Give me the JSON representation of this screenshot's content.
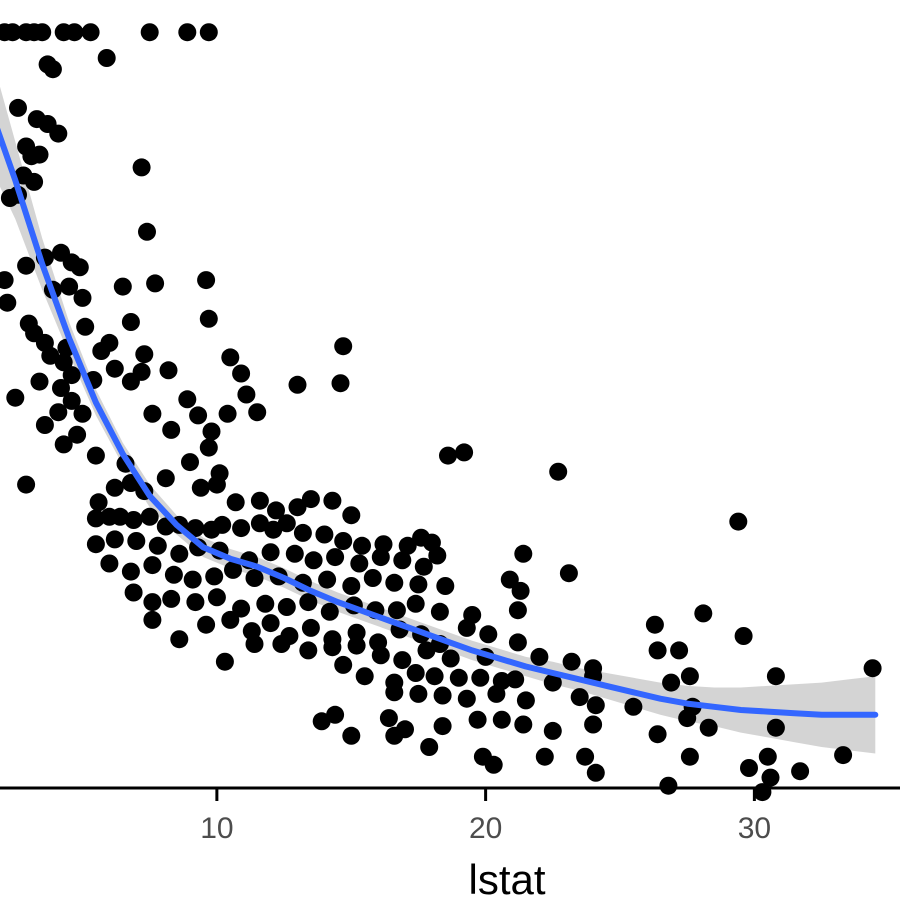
{
  "chart_data": {
    "type": "scatter",
    "title": "",
    "xlabel": "lstat",
    "ylabel": "",
    "xlim": [
      1.0,
      34.5
    ],
    "ylim": [
      3.0,
      52.0
    ],
    "x_ticks": [
      10,
      20,
      30
    ],
    "grid": false,
    "legend": "none",
    "colors": {
      "points": "#000000",
      "smooth_line": "#3366ff",
      "ribbon": "#cccccc",
      "axis": "#000000",
      "tick_label": "#4d4d4d"
    },
    "points": [
      [
        1.7,
        50
      ],
      [
        2.1,
        50
      ],
      [
        2.4,
        50
      ],
      [
        2.9,
        50
      ],
      [
        3.2,
        50
      ],
      [
        3.5,
        50
      ],
      [
        4.3,
        50
      ],
      [
        4.7,
        50
      ],
      [
        5.3,
        50
      ],
      [
        7.5,
        50
      ],
      [
        8.9,
        50
      ],
      [
        9.7,
        50
      ],
      [
        3.7,
        48
      ],
      [
        3.9,
        47.7
      ],
      [
        5.9,
        48.4
      ],
      [
        2.6,
        45.3
      ],
      [
        3.3,
        44.6
      ],
      [
        3.7,
        44.3
      ],
      [
        4.1,
        43.7
      ],
      [
        2.9,
        42.9
      ],
      [
        3.1,
        42.3
      ],
      [
        3.4,
        42.4
      ],
      [
        2.8,
        41.1
      ],
      [
        3.2,
        40.7
      ],
      [
        7.2,
        41.6
      ],
      [
        2.3,
        39.7
      ],
      [
        2.6,
        39.9
      ],
      [
        7.4,
        37.6
      ],
      [
        3.6,
        36.0
      ],
      [
        4.2,
        36.3
      ],
      [
        4.6,
        35.7
      ],
      [
        2.9,
        35.5
      ],
      [
        4.9,
        35.4
      ],
      [
        2.1,
        34.6
      ],
      [
        7.7,
        34.4
      ],
      [
        9.6,
        34.6
      ],
      [
        3.9,
        34.0
      ],
      [
        4.5,
        34.2
      ],
      [
        5.0,
        33.5
      ],
      [
        6.5,
        34.2
      ],
      [
        2.2,
        33.2
      ],
      [
        3.0,
        31.9
      ],
      [
        6.8,
        32.0
      ],
      [
        9.7,
        32.2
      ],
      [
        3.2,
        31.3
      ],
      [
        3.6,
        30.7
      ],
      [
        4.4,
        30.4
      ],
      [
        5.1,
        31.7
      ],
      [
        6.0,
        30.7
      ],
      [
        7.3,
        30.0
      ],
      [
        3.8,
        29.9
      ],
      [
        4.3,
        29.5
      ],
      [
        5.7,
        30.2
      ],
      [
        4.6,
        28.7
      ],
      [
        6.2,
        29.1
      ],
      [
        7.2,
        28.9
      ],
      [
        3.4,
        28.3
      ],
      [
        5.4,
        28.4
      ],
      [
        6.8,
        28.3
      ],
      [
        10.5,
        29.8
      ],
      [
        11.1,
        27.5
      ],
      [
        4.2,
        27.9
      ],
      [
        8.2,
        29.0
      ],
      [
        13.0,
        28.1
      ],
      [
        10.9,
        28.8
      ],
      [
        2.5,
        27.3
      ],
      [
        4.6,
        27.1
      ],
      [
        5.0,
        26.3
      ],
      [
        4.1,
        26.4
      ],
      [
        3.6,
        25.6
      ],
      [
        4.8,
        25.0
      ],
      [
        7.6,
        26.3
      ],
      [
        8.9,
        27.2
      ],
      [
        9.3,
        26.2
      ],
      [
        8.3,
        25.3
      ],
      [
        9.8,
        25.2
      ],
      [
        10.4,
        26.3
      ],
      [
        4.3,
        24.4
      ],
      [
        5.5,
        23.7
      ],
      [
        6.6,
        23.2
      ],
      [
        9.7,
        24.2
      ],
      [
        9.0,
        23.3
      ],
      [
        10.1,
        22.6
      ],
      [
        14.7,
        30.5
      ],
      [
        14.6,
        28.2
      ],
      [
        11.5,
        26.4
      ],
      [
        2.9,
        21.9
      ],
      [
        5.6,
        20.8
      ],
      [
        6.2,
        21.7
      ],
      [
        6.8,
        22.0
      ],
      [
        7.3,
        21.5
      ],
      [
        8.1,
        22.3
      ],
      [
        9.4,
        21.7
      ],
      [
        10.0,
        21.9
      ],
      [
        10.7,
        20.8
      ],
      [
        11.6,
        20.9
      ],
      [
        12.2,
        20.3
      ],
      [
        13.0,
        20.5
      ],
      [
        13.5,
        21.0
      ],
      [
        14.3,
        20.9
      ],
      [
        15.0,
        20.0
      ],
      [
        18.6,
        23.7
      ],
      [
        19.2,
        23.9
      ],
      [
        22.7,
        22.7
      ],
      [
        29.4,
        19.6
      ],
      [
        5.5,
        19.8
      ],
      [
        6.0,
        19.9
      ],
      [
        6.4,
        19.9
      ],
      [
        6.9,
        19.7
      ],
      [
        7.5,
        19.9
      ],
      [
        8.1,
        19.3
      ],
      [
        8.6,
        19.4
      ],
      [
        9.2,
        19.2
      ],
      [
        9.8,
        19.1
      ],
      [
        10.2,
        19.4
      ],
      [
        10.9,
        19.2
      ],
      [
        11.6,
        19.5
      ],
      [
        12.1,
        19.1
      ],
      [
        12.6,
        19.5
      ],
      [
        13.2,
        18.9
      ],
      [
        14.0,
        18.8
      ],
      [
        14.7,
        18.4
      ],
      [
        15.4,
        18.1
      ],
      [
        16.2,
        18.2
      ],
      [
        17.1,
        18.1
      ],
      [
        17.6,
        18.6
      ],
      [
        18.0,
        18.3
      ],
      [
        5.5,
        18.2
      ],
      [
        6.2,
        18.5
      ],
      [
        7.0,
        18.4
      ],
      [
        7.8,
        18.1
      ],
      [
        8.6,
        17.6
      ],
      [
        9.3,
        18.0
      ],
      [
        10.1,
        17.8
      ],
      [
        11.2,
        17.2
      ],
      [
        12.0,
        17.7
      ],
      [
        12.9,
        17.6
      ],
      [
        13.6,
        17.2
      ],
      [
        14.4,
        17.4
      ],
      [
        15.3,
        17.0
      ],
      [
        16.1,
        17.4
      ],
      [
        16.9,
        17.2
      ],
      [
        17.7,
        16.8
      ],
      [
        18.2,
        17.5
      ],
      [
        21.4,
        17.6
      ],
      [
        23.1,
        16.4
      ],
      [
        6.0,
        17.0
      ],
      [
        6.8,
        16.5
      ],
      [
        7.6,
        16.9
      ],
      [
        8.4,
        16.3
      ],
      [
        9.1,
        16.0
      ],
      [
        9.9,
        16.2
      ],
      [
        10.6,
        16.6
      ],
      [
        11.4,
        16.1
      ],
      [
        12.3,
        16.2
      ],
      [
        13.2,
        15.8
      ],
      [
        14.1,
        16.0
      ],
      [
        15.0,
        15.6
      ],
      [
        15.8,
        16.1
      ],
      [
        16.6,
        15.8
      ],
      [
        17.5,
        15.7
      ],
      [
        18.5,
        15.6
      ],
      [
        20.9,
        16.0
      ],
      [
        21.3,
        15.3
      ],
      [
        6.9,
        15.2
      ],
      [
        7.6,
        14.6
      ],
      [
        8.3,
        14.8
      ],
      [
        9.2,
        14.6
      ],
      [
        10.0,
        14.9
      ],
      [
        10.9,
        14.2
      ],
      [
        11.8,
        14.5
      ],
      [
        12.6,
        14.3
      ],
      [
        13.4,
        14.6
      ],
      [
        14.2,
        14.0
      ],
      [
        15.1,
        14.4
      ],
      [
        15.9,
        14.1
      ],
      [
        16.7,
        14.1
      ],
      [
        17.4,
        14.5
      ],
      [
        18.3,
        14.0
      ],
      [
        19.5,
        13.8
      ],
      [
        21.2,
        14.1
      ],
      [
        28.1,
        13.9
      ],
      [
        7.6,
        13.5
      ],
      [
        8.6,
        12.3
      ],
      [
        9.6,
        13.2
      ],
      [
        10.5,
        13.5
      ],
      [
        11.3,
        12.8
      ],
      [
        12.0,
        13.3
      ],
      [
        12.7,
        12.5
      ],
      [
        13.5,
        13.0
      ],
      [
        14.3,
        12.3
      ],
      [
        15.2,
        12.7
      ],
      [
        16.0,
        12.1
      ],
      [
        16.8,
        12.9
      ],
      [
        17.6,
        12.6
      ],
      [
        18.3,
        12.0
      ],
      [
        19.3,
        13.0
      ],
      [
        20.1,
        12.6
      ],
      [
        21.2,
        12.1
      ],
      [
        26.3,
        13.2
      ],
      [
        29.6,
        12.5
      ],
      [
        10.3,
        10.9
      ],
      [
        11.4,
        12.0
      ],
      [
        12.4,
        12.0
      ],
      [
        13.4,
        11.6
      ],
      [
        14.3,
        11.8
      ],
      [
        15.2,
        11.9
      ],
      [
        16.1,
        11.3
      ],
      [
        16.9,
        11.0
      ],
      [
        17.8,
        11.6
      ],
      [
        18.7,
        11.1
      ],
      [
        20.0,
        11.2
      ],
      [
        22.0,
        11.2
      ],
      [
        23.2,
        10.9
      ],
      [
        24.0,
        10.5
      ],
      [
        26.4,
        11.6
      ],
      [
        27.2,
        11.6
      ],
      [
        30.8,
        10.0
      ],
      [
        14.7,
        10.7
      ],
      [
        15.5,
        10.0
      ],
      [
        16.6,
        9.6
      ],
      [
        17.4,
        10.2
      ],
      [
        18.1,
        10.0
      ],
      [
        19.0,
        9.9
      ],
      [
        19.8,
        9.9
      ],
      [
        20.6,
        9.7
      ],
      [
        21.1,
        9.8
      ],
      [
        22.5,
        9.6
      ],
      [
        24.0,
        10.0
      ],
      [
        26.9,
        9.6
      ],
      [
        27.6,
        10.0
      ],
      [
        34.4,
        10.5
      ],
      [
        16.6,
        9.0
      ],
      [
        17.5,
        8.9
      ],
      [
        18.4,
        8.8
      ],
      [
        19.3,
        8.6
      ],
      [
        20.4,
        8.9
      ],
      [
        21.5,
        8.5
      ],
      [
        23.5,
        8.7
      ],
      [
        24.1,
        8.2
      ],
      [
        25.5,
        8.1
      ],
      [
        27.7,
        8.1
      ],
      [
        13.9,
        7.2
      ],
      [
        14.4,
        7.6
      ],
      [
        16.4,
        7.4
      ],
      [
        17.0,
        6.7
      ],
      [
        18.4,
        6.9
      ],
      [
        19.7,
        7.3
      ],
      [
        20.6,
        7.3
      ],
      [
        21.4,
        7.0
      ],
      [
        22.5,
        6.6
      ],
      [
        24.0,
        7.0
      ],
      [
        26.4,
        6.4
      ],
      [
        27.5,
        7.4
      ],
      [
        28.3,
        6.8
      ],
      [
        30.8,
        6.8
      ],
      [
        15.0,
        6.3
      ],
      [
        16.6,
        6.3
      ],
      [
        17.9,
        5.6
      ],
      [
        19.9,
        5.0
      ],
      [
        22.2,
        5.0
      ],
      [
        23.7,
        5.0
      ],
      [
        27.6,
        5.0
      ],
      [
        30.5,
        5.0
      ],
      [
        20.3,
        4.5
      ],
      [
        24.1,
        4.0
      ],
      [
        26.8,
        3.2
      ],
      [
        29.8,
        4.3
      ],
      [
        31.7,
        4.1
      ],
      [
        33.3,
        5.1
      ],
      [
        30.3,
        2.8
      ],
      [
        30.6,
        3.7
      ]
    ],
    "smooth_line": {
      "x": [
        1.7,
        2.5,
        3.5,
        4.5,
        5.5,
        6.5,
        7.5,
        8.5,
        9.5,
        10.5,
        11.5,
        12.5,
        13.5,
        14.5,
        15.5,
        16.5,
        17.5,
        18.5,
        19.5,
        20.5,
        21.5,
        22.5,
        23.5,
        24.5,
        25.5,
        26.5,
        27.5,
        28.5,
        29.5,
        30.5,
        31.5,
        32.5,
        33.5,
        34.5
      ],
      "y": [
        44.6,
        40.8,
        35.6,
        31.0,
        27.0,
        23.8,
        21.2,
        19.4,
        18.0,
        17.3,
        16.8,
        16.1,
        15.3,
        14.6,
        14.0,
        13.4,
        12.8,
        12.2,
        11.6,
        11.1,
        10.6,
        10.2,
        9.8,
        9.4,
        9.0,
        8.6,
        8.3,
        8.1,
        7.9,
        7.8,
        7.7,
        7.6,
        7.6,
        7.6
      ],
      "band": [
        3.4,
        2.4,
        1.6,
        1.0,
        0.8,
        0.7,
        0.7,
        0.6,
        0.6,
        0.6,
        0.6,
        0.6,
        0.6,
        0.6,
        0.6,
        0.6,
        0.6,
        0.6,
        0.6,
        0.6,
        0.6,
        0.7,
        0.7,
        0.8,
        0.9,
        1.0,
        1.1,
        1.2,
        1.4,
        1.6,
        1.8,
        2.0,
        2.2,
        2.4
      ]
    }
  }
}
